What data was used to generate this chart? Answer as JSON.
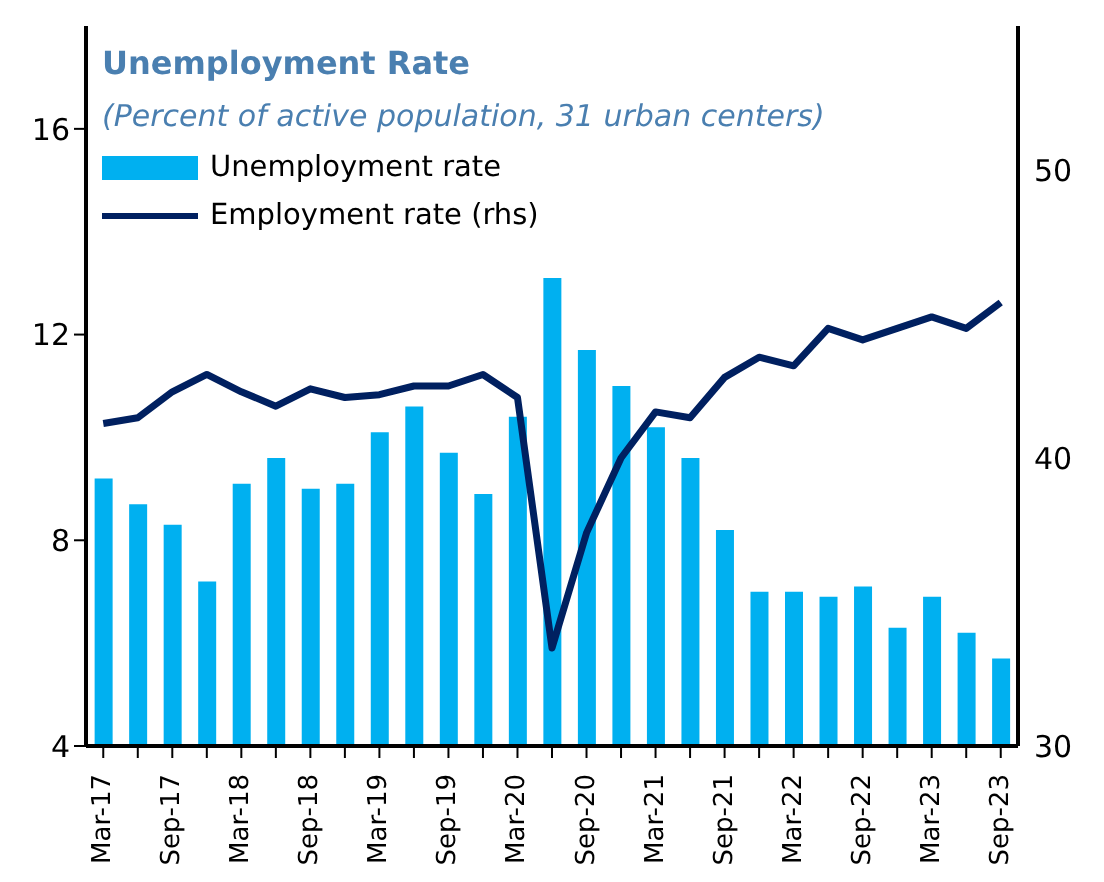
{
  "chart_data": {
    "type": "bar",
    "title": "Unemployment Rate",
    "subtitle": "(Percent of active population, 31 urban centers)",
    "categories": [
      "Mar-17",
      null,
      "Sep-17",
      null,
      "Mar-18",
      null,
      "Sep-18",
      null,
      "Mar-19",
      null,
      "Sep-19",
      null,
      "Mar-20",
      null,
      "Sep-20",
      null,
      "Mar-21",
      null,
      "Sep-21",
      null,
      "Mar-22",
      null,
      "Sep-22",
      null,
      "Mar-23",
      null,
      "Sep-23"
    ],
    "series": [
      {
        "name": "Unemployment rate",
        "color": "#00b0f0",
        "values": [
          9.2,
          8.7,
          8.3,
          7.2,
          9.1,
          9.6,
          9.0,
          9.1,
          10.1,
          10.6,
          9.7,
          8.9,
          10.4,
          13.1,
          11.7,
          11.0,
          10.2,
          9.6,
          8.2,
          7.0,
          7.0,
          6.9,
          7.1,
          6.3,
          6.9,
          6.2,
          5.7
        ]
      },
      {
        "name": "Employment rate (rhs)",
        "type": "line",
        "axis": "y2",
        "color": "#002060",
        "values": [
          41.2,
          41.4,
          42.3,
          42.9,
          42.3,
          41.8,
          42.4,
          42.1,
          42.2,
          42.5,
          42.5,
          42.9,
          42.1,
          33.4,
          37.4,
          40.0,
          41.6,
          41.4,
          42.8,
          43.5,
          43.2,
          44.5,
          44.1,
          44.5,
          44.9,
          44.5,
          45.4
        ]
      }
    ],
    "ylim": [
      4,
      18
    ],
    "yticks": [
      4,
      8,
      12,
      16
    ],
    "y2lim": [
      30,
      55
    ],
    "y2ticks": [
      30,
      40,
      50
    ],
    "legend": "top left",
    "grid": false,
    "marker": "none",
    "line_style": "solid"
  }
}
